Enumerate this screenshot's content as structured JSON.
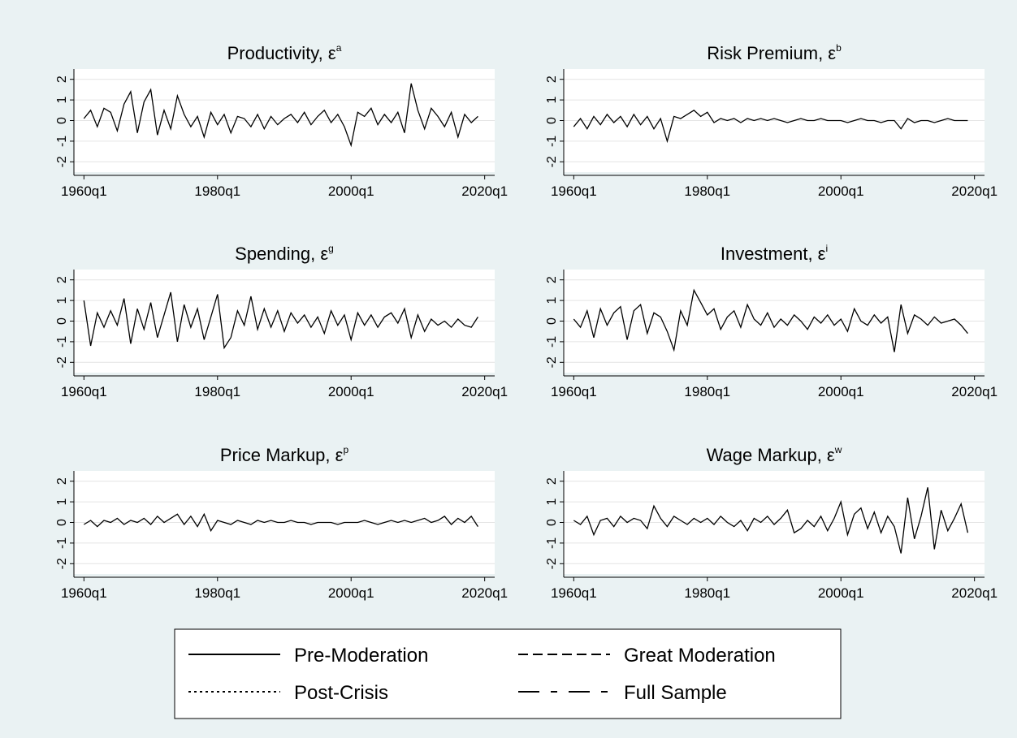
{
  "chart_data": [
    {
      "type": "line",
      "title": "Productivity, ε",
      "title_sup": "a",
      "color": "#000000",
      "x": [
        1960,
        1961,
        1962,
        1963,
        1964,
        1965,
        1966,
        1967,
        1968,
        1969,
        1970,
        1971,
        1972,
        1973,
        1974,
        1975,
        1976,
        1977,
        1978,
        1979,
        1980,
        1981,
        1982,
        1983,
        1984,
        1985,
        1986,
        1987,
        1988,
        1989,
        1990,
        1991,
        1992,
        1993,
        1994,
        1995,
        1996,
        1997,
        1998,
        1999,
        2000,
        2001,
        2002,
        2003,
        2004,
        2005,
        2006,
        2007,
        2008,
        2009,
        2010,
        2011,
        2012,
        2013,
        2014,
        2015,
        2016,
        2017,
        2018,
        2019
      ],
      "values": [
        0.1,
        0.5,
        -0.3,
        0.6,
        0.4,
        -0.5,
        0.8,
        1.4,
        -0.6,
        0.9,
        1.5,
        -0.7,
        0.5,
        -0.4,
        1.2,
        0.3,
        -0.3,
        0.2,
        -0.8,
        0.4,
        -0.2,
        0.3,
        -0.6,
        0.2,
        0.1,
        -0.3,
        0.3,
        -0.4,
        0.2,
        -0.2,
        0.1,
        0.3,
        -0.1,
        0.4,
        -0.2,
        0.2,
        0.5,
        -0.1,
        0.3,
        -0.3,
        -1.2,
        0.4,
        0.2,
        0.6,
        -0.2,
        0.3,
        -0.1,
        0.4,
        -0.6,
        1.8,
        0.5,
        -0.4,
        0.6,
        0.2,
        -0.3,
        0.4,
        -0.8,
        0.3,
        -0.1,
        0.2
      ],
      "xlim": [
        1958.5,
        2021.5
      ],
      "xticks": [
        {
          "value": 1960,
          "label": "1960q1"
        },
        {
          "value": 1980,
          "label": "1980q1"
        },
        {
          "value": 2000,
          "label": "2000q1"
        },
        {
          "value": 2020,
          "label": "2020q1"
        }
      ],
      "ylim": [
        -2.5,
        2.5
      ],
      "yticks": [
        -2,
        -1,
        0,
        1,
        2
      ],
      "grid": true
    },
    {
      "type": "line",
      "title": "Risk Premium, ε",
      "title_sup": "b",
      "color": "#000000",
      "x": [
        1960,
        1961,
        1962,
        1963,
        1964,
        1965,
        1966,
        1967,
        1968,
        1969,
        1970,
        1971,
        1972,
        1973,
        1974,
        1975,
        1976,
        1977,
        1978,
        1979,
        1980,
        1981,
        1982,
        1983,
        1984,
        1985,
        1986,
        1987,
        1988,
        1989,
        1990,
        1991,
        1992,
        1993,
        1994,
        1995,
        1996,
        1997,
        1998,
        1999,
        2000,
        2001,
        2002,
        2003,
        2004,
        2005,
        2006,
        2007,
        2008,
        2009,
        2010,
        2011,
        2012,
        2013,
        2014,
        2015,
        2016,
        2017,
        2018,
        2019
      ],
      "values": [
        -0.3,
        0.1,
        -0.4,
        0.2,
        -0.2,
        0.3,
        -0.1,
        0.2,
        -0.3,
        0.3,
        -0.2,
        0.2,
        -0.4,
        0.1,
        -1.0,
        0.2,
        0.1,
        0.3,
        0.5,
        0.2,
        0.4,
        -0.1,
        0.1,
        0.0,
        0.1,
        -0.1,
        0.1,
        0.0,
        0.1,
        0.0,
        0.1,
        0.0,
        -0.1,
        0.0,
        0.1,
        0.0,
        0.0,
        0.1,
        0.0,
        0.0,
        0.0,
        -0.1,
        0.0,
        0.1,
        0.0,
        0.0,
        -0.1,
        0.0,
        0.0,
        -0.4,
        0.1,
        -0.1,
        0.0,
        0.0,
        -0.1,
        0.0,
        0.1,
        0.0,
        0.0,
        0.0
      ],
      "xlim": [
        1958.5,
        2021.5
      ],
      "xticks": [
        {
          "value": 1960,
          "label": "1960q1"
        },
        {
          "value": 1980,
          "label": "1980q1"
        },
        {
          "value": 2000,
          "label": "2000q1"
        },
        {
          "value": 2020,
          "label": "2020q1"
        }
      ],
      "ylim": [
        -2.5,
        2.5
      ],
      "yticks": [
        -2,
        -1,
        0,
        1,
        2
      ],
      "grid": true
    },
    {
      "type": "line",
      "title": "Spending, ε",
      "title_sup": "g",
      "color": "#000000",
      "x": [
        1960,
        1961,
        1962,
        1963,
        1964,
        1965,
        1966,
        1967,
        1968,
        1969,
        1970,
        1971,
        1972,
        1973,
        1974,
        1975,
        1976,
        1977,
        1978,
        1979,
        1980,
        1981,
        1982,
        1983,
        1984,
        1985,
        1986,
        1987,
        1988,
        1989,
        1990,
        1991,
        1992,
        1993,
        1994,
        1995,
        1996,
        1997,
        1998,
        1999,
        2000,
        2001,
        2002,
        2003,
        2004,
        2005,
        2006,
        2007,
        2008,
        2009,
        2010,
        2011,
        2012,
        2013,
        2014,
        2015,
        2016,
        2017,
        2018,
        2019
      ],
      "values": [
        1.0,
        -1.2,
        0.4,
        -0.3,
        0.5,
        -0.2,
        1.1,
        -1.1,
        0.6,
        -0.4,
        0.9,
        -0.8,
        0.3,
        1.4,
        -1.0,
        0.8,
        -0.3,
        0.6,
        -0.9,
        0.2,
        1.3,
        -1.3,
        -0.8,
        0.5,
        -0.2,
        1.2,
        -0.4,
        0.6,
        -0.3,
        0.5,
        -0.5,
        0.4,
        -0.1,
        0.3,
        -0.3,
        0.2,
        -0.6,
        0.5,
        -0.2,
        0.3,
        -0.9,
        0.4,
        -0.2,
        0.3,
        -0.3,
        0.2,
        0.4,
        -0.1,
        0.6,
        -0.8,
        0.3,
        -0.5,
        0.1,
        -0.2,
        0.0,
        -0.3,
        0.1,
        -0.2,
        -0.3,
        0.2
      ],
      "xlim": [
        1958.5,
        2021.5
      ],
      "xticks": [
        {
          "value": 1960,
          "label": "1960q1"
        },
        {
          "value": 1980,
          "label": "1980q1"
        },
        {
          "value": 2000,
          "label": "2000q1"
        },
        {
          "value": 2020,
          "label": "2020q1"
        }
      ],
      "ylim": [
        -2.5,
        2.5
      ],
      "yticks": [
        -2,
        -1,
        0,
        1,
        2
      ],
      "grid": true
    },
    {
      "type": "line",
      "title": "Investment, ε",
      "title_sup": "i",
      "color": "#000000",
      "x": [
        1960,
        1961,
        1962,
        1963,
        1964,
        1965,
        1966,
        1967,
        1968,
        1969,
        1970,
        1971,
        1972,
        1973,
        1974,
        1975,
        1976,
        1977,
        1978,
        1979,
        1980,
        1981,
        1982,
        1983,
        1984,
        1985,
        1986,
        1987,
        1988,
        1989,
        1990,
        1991,
        1992,
        1993,
        1994,
        1995,
        1996,
        1997,
        1998,
        1999,
        2000,
        2001,
        2002,
        2003,
        2004,
        2005,
        2006,
        2007,
        2008,
        2009,
        2010,
        2011,
        2012,
        2013,
        2014,
        2015,
        2016,
        2017,
        2018,
        2019
      ],
      "values": [
        0.1,
        -0.3,
        0.5,
        -0.8,
        0.6,
        -0.2,
        0.4,
        0.7,
        -0.9,
        0.5,
        0.8,
        -0.6,
        0.4,
        0.2,
        -0.5,
        -1.4,
        0.5,
        -0.2,
        1.5,
        0.9,
        0.3,
        0.6,
        -0.4,
        0.2,
        0.5,
        -0.3,
        0.8,
        0.1,
        -0.2,
        0.4,
        -0.3,
        0.1,
        -0.2,
        0.3,
        0.0,
        -0.4,
        0.2,
        -0.1,
        0.3,
        -0.2,
        0.1,
        -0.5,
        0.6,
        0.0,
        -0.2,
        0.3,
        -0.1,
        0.2,
        -1.5,
        0.8,
        -0.6,
        0.3,
        0.1,
        -0.2,
        0.2,
        -0.1,
        0.0,
        0.1,
        -0.2,
        -0.6
      ],
      "xlim": [
        1958.5,
        2021.5
      ],
      "xticks": [
        {
          "value": 1960,
          "label": "1960q1"
        },
        {
          "value": 1980,
          "label": "1980q1"
        },
        {
          "value": 2000,
          "label": "2000q1"
        },
        {
          "value": 2020,
          "label": "2020q1"
        }
      ],
      "ylim": [
        -2.5,
        2.5
      ],
      "yticks": [
        -2,
        -1,
        0,
        1,
        2
      ],
      "grid": true
    },
    {
      "type": "line",
      "title": "Price Markup, ε",
      "title_sup": "p",
      "color": "#000000",
      "x": [
        1960,
        1961,
        1962,
        1963,
        1964,
        1965,
        1966,
        1967,
        1968,
        1969,
        1970,
        1971,
        1972,
        1973,
        1974,
        1975,
        1976,
        1977,
        1978,
        1979,
        1980,
        1981,
        1982,
        1983,
        1984,
        1985,
        1986,
        1987,
        1988,
        1989,
        1990,
        1991,
        1992,
        1993,
        1994,
        1995,
        1996,
        1997,
        1998,
        1999,
        2000,
        2001,
        2002,
        2003,
        2004,
        2005,
        2006,
        2007,
        2008,
        2009,
        2010,
        2011,
        2012,
        2013,
        2014,
        2015,
        2016,
        2017,
        2018,
        2019
      ],
      "values": [
        -0.1,
        0.1,
        -0.2,
        0.1,
        0.0,
        0.2,
        -0.1,
        0.1,
        0.0,
        0.2,
        -0.1,
        0.3,
        0.0,
        0.2,
        0.4,
        -0.1,
        0.3,
        -0.2,
        0.4,
        -0.4,
        0.1,
        0.0,
        -0.1,
        0.1,
        0.0,
        -0.1,
        0.1,
        0.0,
        0.1,
        0.0,
        0.0,
        0.1,
        0.0,
        0.0,
        -0.1,
        0.0,
        0.0,
        0.0,
        -0.1,
        0.0,
        0.0,
        0.0,
        0.1,
        0.0,
        -0.1,
        0.0,
        0.1,
        0.0,
        0.1,
        0.0,
        0.1,
        0.2,
        0.0,
        0.1,
        0.3,
        -0.1,
        0.2,
        0.0,
        0.3,
        -0.2
      ],
      "xlim": [
        1958.5,
        2021.5
      ],
      "xticks": [
        {
          "value": 1960,
          "label": "1960q1"
        },
        {
          "value": 1980,
          "label": "1980q1"
        },
        {
          "value": 2000,
          "label": "2000q1"
        },
        {
          "value": 2020,
          "label": "2020q1"
        }
      ],
      "ylim": [
        -2.5,
        2.5
      ],
      "yticks": [
        -2,
        -1,
        0,
        1,
        2
      ],
      "grid": true
    },
    {
      "type": "line",
      "title": "Wage Markup, ε",
      "title_sup": "w",
      "color": "#000000",
      "x": [
        1960,
        1961,
        1962,
        1963,
        1964,
        1965,
        1966,
        1967,
        1968,
        1969,
        1970,
        1971,
        1972,
        1973,
        1974,
        1975,
        1976,
        1977,
        1978,
        1979,
        1980,
        1981,
        1982,
        1983,
        1984,
        1985,
        1986,
        1987,
        1988,
        1989,
        1990,
        1991,
        1992,
        1993,
        1994,
        1995,
        1996,
        1997,
        1998,
        1999,
        2000,
        2001,
        2002,
        2003,
        2004,
        2005,
        2006,
        2007,
        2008,
        2009,
        2010,
        2011,
        2012,
        2013,
        2014,
        2015,
        2016,
        2017,
        2018,
        2019
      ],
      "values": [
        0.1,
        -0.1,
        0.3,
        -0.6,
        0.1,
        0.2,
        -0.2,
        0.3,
        0.0,
        0.2,
        0.1,
        -0.3,
        0.8,
        0.2,
        -0.2,
        0.3,
        0.1,
        -0.1,
        0.2,
        0.0,
        0.2,
        -0.1,
        0.3,
        0.0,
        -0.2,
        0.1,
        -0.4,
        0.2,
        0.0,
        0.3,
        -0.1,
        0.2,
        0.6,
        -0.5,
        -0.3,
        0.1,
        -0.2,
        0.3,
        -0.4,
        0.2,
        1.0,
        -0.6,
        0.4,
        0.7,
        -0.3,
        0.5,
        -0.5,
        0.3,
        -0.2,
        -1.5,
        1.2,
        -0.8,
        0.3,
        1.7,
        -1.3,
        0.6,
        -0.4,
        0.2,
        0.9,
        -0.5
      ],
      "xlim": [
        1958.5,
        2021.5
      ],
      "xticks": [
        {
          "value": 1960,
          "label": "1960q1"
        },
        {
          "value": 1980,
          "label": "1980q1"
        },
        {
          "value": 2000,
          "label": "2000q1"
        },
        {
          "value": 2020,
          "label": "2020q1"
        }
      ],
      "ylim": [
        -2.5,
        2.5
      ],
      "yticks": [
        -2,
        -1,
        0,
        1,
        2
      ],
      "grid": true
    }
  ],
  "legend": {
    "entries": [
      {
        "name": "Pre-Moderation",
        "dash": "solid"
      },
      {
        "name": "Great Moderation",
        "dash": "dashed"
      },
      {
        "name": "Post-Crisis",
        "dash": "dotted"
      },
      {
        "name": "Full Sample",
        "dash": "longdash"
      }
    ]
  }
}
